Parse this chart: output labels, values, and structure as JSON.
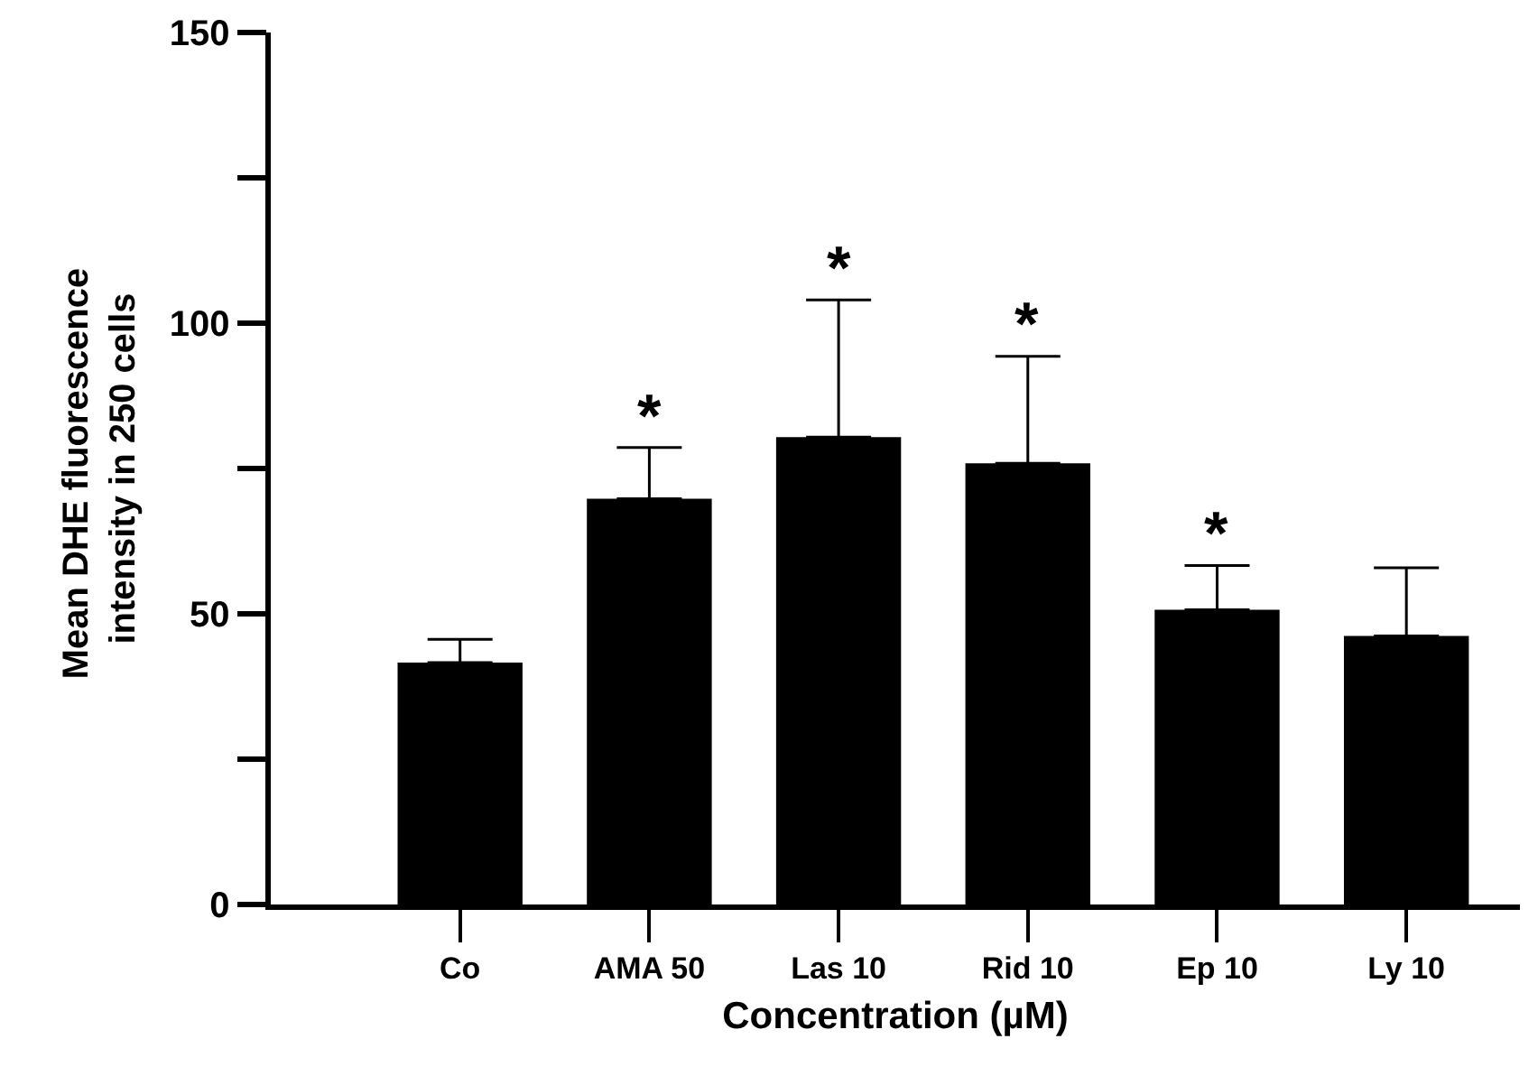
{
  "chart_data": {
    "type": "bar",
    "xlabel": "Concentration (µM)",
    "ylabel": "Mean DHE fluorescence intensity in 250 cells",
    "categories": [
      "Co",
      "AMA 50",
      "Las 10",
      "Rid 10",
      "Ep 10",
      "Ly 10"
    ],
    "values": [
      41.6,
      69.8,
      80.4,
      75.9,
      50.7,
      46.2
    ],
    "errors": [
      [
        41.6,
        45.6
      ],
      [
        69.8,
        78.6
      ],
      [
        80.4,
        104.0
      ],
      [
        75.9,
        94.3
      ],
      [
        50.7,
        58.3
      ],
      [
        46.2,
        57.9
      ]
    ],
    "color": "#000000",
    "ylim": [
      0,
      150
    ],
    "yticks": [
      0,
      {
        "value": 25,
        "label": null
      },
      50,
      {
        "value": 75,
        "label": null
      },
      100,
      {
        "value": 125,
        "label": null
      },
      150
    ],
    "grid": false,
    "legend": false,
    "annotations": [
      {
        "text": "*",
        "x": "AMA 50",
        "y": 78.6
      },
      {
        "text": "*",
        "x": "Las 10",
        "y": 104.0
      },
      {
        "text": "*",
        "x": "Rid 10",
        "y": 94.3
      },
      {
        "text": "*",
        "x": "Ep 10",
        "y": 58.3
      }
    ]
  }
}
